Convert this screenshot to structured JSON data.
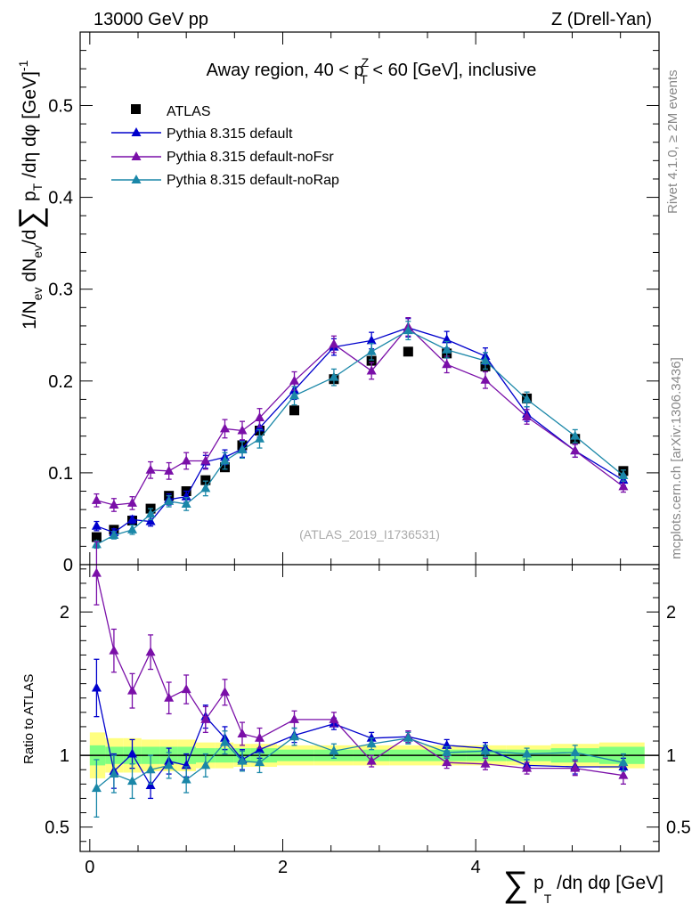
{
  "header": {
    "left": "13000 GeV pp",
    "right": "Z (Drell-Yan)"
  },
  "side_labels": {
    "rivet": "Rivet 4.1.0, ≥ 2M events",
    "mcplots": "mcplots.cern.ch [arXiv:1306.3436]"
  },
  "colors": {
    "atlas": "#000000",
    "default": "#0000cc",
    "noFsr": "#7a0fa8",
    "noRap": "#1a87a8",
    "band_inner": "#80ff80",
    "band_outer": "#ffff80"
  },
  "chart_data": [
    {
      "type": "scatter",
      "title": "Away region, 40 < p_T^Z < 60 [GeV], inclusive",
      "title_parts": {
        "pre": "Away region, 40 < p",
        "sup": "Z",
        "sub": "T",
        "post": " < 60 [GeV], inclusive"
      },
      "ylabel": "1/N_ev dN_ev/d∑ p_T /dη dφ [GeV]^-1",
      "ylabel_parts": {
        "a": "1/N",
        "a_sub": "ev",
        "b": " dN",
        "b_sub": "ev",
        "c": "/d",
        "sum": "∑",
        "d": " p",
        "d_sub": "T",
        "e": " /dη dφ  [GeV]",
        "e_sup": "-1"
      },
      "watermark": "(ATLAS_2019_I1736531)",
      "xlim": [
        -0.1,
        5.9
      ],
      "ylim": [
        0,
        0.58
      ],
      "yticks": [
        0,
        0.1,
        0.2,
        0.3,
        0.4,
        0.5
      ],
      "ytick_labels": [
        "0",
        "0.1",
        "0.2",
        "0.3",
        "0.4",
        "0.5"
      ],
      "legend": [
        "ATLAS",
        "Pythia 8.315 default",
        "Pythia 8.315 default-noFsr",
        "Pythia 8.315 default-noRap"
      ],
      "x": [
        0.07,
        0.25,
        0.44,
        0.63,
        0.82,
        1.0,
        1.2,
        1.4,
        1.58,
        1.76,
        2.12,
        2.53,
        2.92,
        3.3,
        3.7,
        4.1,
        4.53,
        5.03,
        5.53
      ],
      "series": [
        {
          "name": "ATLAS",
          "marker": "square",
          "values": [
            0.03,
            0.038,
            0.048,
            0.061,
            0.075,
            0.08,
            0.092,
            0.106,
            0.13,
            0.146,
            0.168,
            0.202,
            0.222,
            0.232,
            0.23,
            0.216,
            0.181,
            0.137,
            0.102
          ]
        },
        {
          "name": "Pythia 8.315 default",
          "marker": "triangle",
          "values": [
            0.042,
            0.035,
            0.049,
            0.047,
            0.071,
            0.074,
            0.112,
            0.117,
            0.126,
            0.149,
            0.19,
            0.237,
            0.244,
            0.258,
            0.245,
            0.227,
            0.164,
            0.124,
            0.092
          ],
          "errors": [
            0.005,
            0.004,
            0.004,
            0.005,
            0.006,
            0.006,
            0.007,
            0.008,
            0.009,
            0.01,
            0.01,
            0.009,
            0.009,
            0.01,
            0.009,
            0.009,
            0.008,
            0.007,
            0.006
          ]
        },
        {
          "name": "Pythia 8.315 default-noFsr",
          "marker": "triangle",
          "values": [
            0.07,
            0.065,
            0.067,
            0.103,
            0.102,
            0.113,
            0.113,
            0.148,
            0.146,
            0.16,
            0.2,
            0.24,
            0.211,
            0.259,
            0.218,
            0.201,
            0.161,
            0.124,
            0.085
          ],
          "errors": [
            0.007,
            0.007,
            0.007,
            0.009,
            0.009,
            0.009,
            0.009,
            0.01,
            0.01,
            0.01,
            0.01,
            0.009,
            0.009,
            0.01,
            0.009,
            0.009,
            0.008,
            0.007,
            0.006
          ]
        },
        {
          "name": "Pythia 8.315 default-noRap",
          "marker": "triangle",
          "values": [
            0.022,
            0.032,
            0.038,
            0.055,
            0.069,
            0.066,
            0.083,
            0.113,
            0.125,
            0.137,
            0.184,
            0.204,
            0.232,
            0.255,
            0.234,
            0.222,
            0.18,
            0.14,
            0.097
          ],
          "errors": [
            0.004,
            0.004,
            0.005,
            0.006,
            0.006,
            0.007,
            0.008,
            0.009,
            0.009,
            0.01,
            0.01,
            0.009,
            0.009,
            0.01,
            0.009,
            0.009,
            0.008,
            0.007,
            0.006
          ]
        }
      ]
    },
    {
      "type": "scatter",
      "ylabel": "Ratio to ATLAS",
      "xlabel": "∑ p_T /dη dφ [GeV]",
      "xlabel_parts": {
        "sum": "∑",
        "a": " p",
        "a_sub": "T",
        "b": " /dη dφ [GeV]"
      },
      "xlim": [
        -0.1,
        5.9
      ],
      "ylim": [
        0.33,
        2.33
      ],
      "xticks": [
        0,
        2,
        4
      ],
      "xtick_labels": [
        "0",
        "2",
        "4"
      ],
      "yticks": [
        0.5,
        1,
        2
      ],
      "ytick_labels": [
        "0.5",
        "1",
        "2"
      ],
      "reference": 1.0,
      "band_inner_halfwidth": [
        0.07,
        0.06,
        0.06,
        0.06,
        0.06,
        0.06,
        0.05,
        0.05,
        0.05,
        0.05,
        0.04,
        0.04,
        0.04,
        0.04,
        0.04,
        0.04,
        0.04,
        0.05,
        0.06
      ],
      "band_outer_halfwidth": [
        0.16,
        0.12,
        0.12,
        0.11,
        0.11,
        0.11,
        0.09,
        0.09,
        0.08,
        0.08,
        0.07,
        0.07,
        0.07,
        0.07,
        0.07,
        0.07,
        0.07,
        0.08,
        0.09
      ],
      "x": [
        0.07,
        0.25,
        0.44,
        0.63,
        0.82,
        1.0,
        1.2,
        1.4,
        1.58,
        1.76,
        2.12,
        2.53,
        2.92,
        3.3,
        3.7,
        4.1,
        4.53,
        5.03,
        5.53
      ],
      "series": [
        {
          "name": "Pythia 8.315 default",
          "values": [
            1.47,
            0.89,
            1.01,
            0.79,
            0.96,
            0.93,
            1.27,
            1.12,
            0.97,
            1.04,
            1.14,
            1.22,
            1.12,
            1.13,
            1.07,
            1.05,
            0.93,
            0.92,
            0.92
          ],
          "errors": [
            0.2,
            0.12,
            0.1,
            0.09,
            0.09,
            0.08,
            0.08,
            0.08,
            0.07,
            0.06,
            0.05,
            0.04,
            0.04,
            0.04,
            0.04,
            0.04,
            0.04,
            0.05,
            0.06
          ]
        },
        {
          "name": "Pythia 8.315 default-noFsr",
          "values": [
            2.27,
            1.73,
            1.45,
            1.72,
            1.4,
            1.46,
            1.25,
            1.44,
            1.15,
            1.12,
            1.25,
            1.25,
            0.96,
            1.13,
            0.95,
            0.94,
            0.91,
            0.91,
            0.86
          ],
          "errors": [
            0.22,
            0.15,
            0.12,
            0.12,
            0.11,
            0.1,
            0.09,
            0.09,
            0.08,
            0.07,
            0.06,
            0.05,
            0.04,
            0.04,
            0.04,
            0.04,
            0.04,
            0.05,
            0.06
          ]
        },
        {
          "name": "Pythia 8.315 default-noRap",
          "values": [
            0.77,
            0.87,
            0.82,
            0.9,
            0.93,
            0.83,
            0.93,
            1.09,
            0.96,
            0.95,
            1.13,
            1.03,
            1.08,
            1.12,
            1.02,
            1.03,
            1.01,
            1.02,
            0.95
          ],
          "errors": [
            0.2,
            0.13,
            0.12,
            0.1,
            0.09,
            0.09,
            0.08,
            0.08,
            0.07,
            0.07,
            0.06,
            0.05,
            0.04,
            0.04,
            0.04,
            0.04,
            0.04,
            0.05,
            0.06
          ]
        }
      ]
    }
  ]
}
